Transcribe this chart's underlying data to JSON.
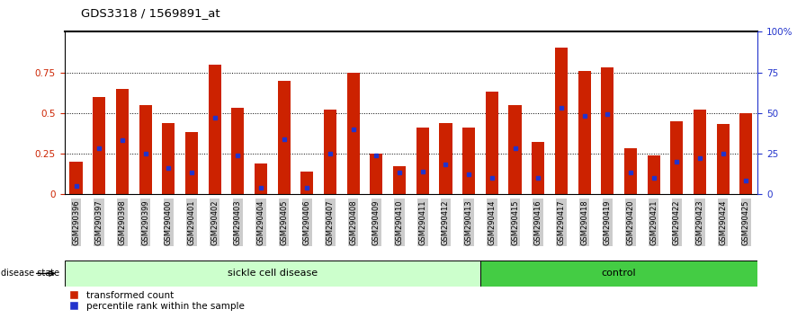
{
  "title": "GDS3318 / 1569891_at",
  "samples": [
    "GSM290396",
    "GSM290397",
    "GSM290398",
    "GSM290399",
    "GSM290400",
    "GSM290401",
    "GSM290402",
    "GSM290403",
    "GSM290404",
    "GSM290405",
    "GSM290406",
    "GSM290407",
    "GSM290408",
    "GSM290409",
    "GSM290410",
    "GSM290411",
    "GSM290412",
    "GSM290413",
    "GSM290414",
    "GSM290415",
    "GSM290416",
    "GSM290417",
    "GSM290418",
    "GSM290419",
    "GSM290420",
    "GSM290421",
    "GSM290422",
    "GSM290423",
    "GSM290424",
    "GSM290425"
  ],
  "red_values": [
    0.2,
    0.6,
    0.65,
    0.55,
    0.44,
    0.38,
    0.8,
    0.53,
    0.19,
    0.7,
    0.14,
    0.52,
    0.75,
    0.25,
    0.17,
    0.41,
    0.44,
    0.41,
    0.63,
    0.55,
    0.32,
    0.9,
    0.76,
    0.78,
    0.28,
    0.24,
    0.45,
    0.52,
    0.43,
    0.5
  ],
  "blue_values": [
    0.05,
    0.28,
    0.33,
    0.25,
    0.16,
    0.13,
    0.47,
    0.24,
    0.04,
    0.34,
    0.04,
    0.25,
    0.4,
    0.24,
    0.13,
    0.14,
    0.18,
    0.12,
    0.1,
    0.28,
    0.1,
    0.53,
    0.48,
    0.49,
    0.13,
    0.1,
    0.2,
    0.22,
    0.25,
    0.08
  ],
  "sickle_count": 18,
  "control_count": 12,
  "bar_color": "#cc2200",
  "blue_color": "#2233cc",
  "sickle_bg": "#ccffcc",
  "control_bg": "#44cc44",
  "label_bg": "#cccccc",
  "left_axis_color": "#cc2200",
  "right_axis_color": "#2233cc",
  "ylim": [
    0,
    1.0
  ],
  "yticks_left": [
    0,
    0.25,
    0.5,
    0.75
  ],
  "yticks_right_labels": [
    "0",
    "25",
    "50",
    "75",
    "100%"
  ]
}
